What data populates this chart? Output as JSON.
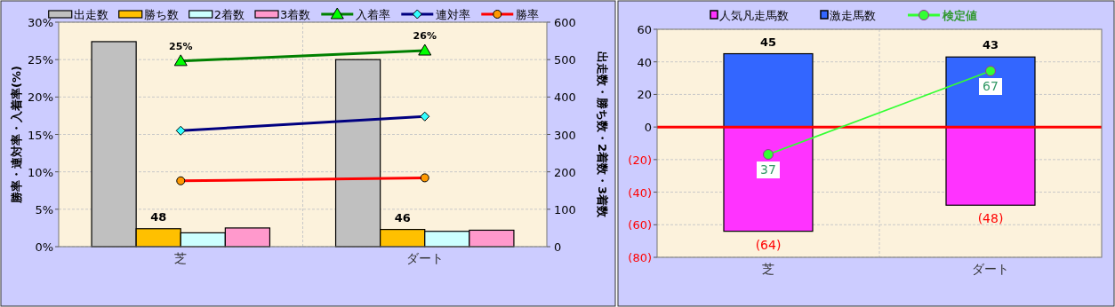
{
  "chart_data": [
    {
      "type": "bar",
      "categories": [
        "芝",
        "ダート"
      ],
      "ylabel": "勝率・連対率・入着率(%)",
      "y2label": "出走数・勝ち数・2着数・3着数",
      "ylim": [
        0,
        30
      ],
      "yticks": [
        {
          "value": 0,
          "label": "0%"
        },
        {
          "value": 5,
          "label": "5%"
        },
        {
          "value": 10,
          "label": "10%"
        },
        {
          "value": 15,
          "label": "15%"
        },
        {
          "value": 20,
          "label": "20%"
        },
        {
          "value": 25,
          "label": "25%"
        },
        {
          "value": 30,
          "label": "30%"
        }
      ],
      "y2lim": [
        0,
        600
      ],
      "y2ticks": [
        0,
        100,
        200,
        300,
        400,
        500,
        600
      ],
      "grid": true,
      "legend": "top",
      "series": [
        {
          "name": "出走数",
          "type": "bar",
          "axis": "y2",
          "color": "#c0c0c0",
          "values": [
            548,
            500
          ]
        },
        {
          "name": "勝ち数",
          "type": "bar",
          "axis": "y2",
          "color": "#ffc000",
          "values": [
            48,
            46
          ],
          "value_labels": [
            "48",
            "46"
          ]
        },
        {
          "name": "2着数",
          "type": "bar",
          "axis": "y2",
          "color": "#ccffff",
          "values": [
            37,
            41
          ]
        },
        {
          "name": "3着数",
          "type": "bar",
          "axis": "y2",
          "color": "#ff99cc",
          "values": [
            50,
            44
          ]
        },
        {
          "name": "入着率",
          "type": "line",
          "color": "#008000",
          "marker": "triangle",
          "values": [
            24.8,
            26.2
          ],
          "value_labels": [
            "25%",
            "26%"
          ]
        },
        {
          "name": "連対率",
          "type": "line",
          "color": "#000080",
          "marker": "diamond",
          "values": [
            15.5,
            17.4
          ]
        },
        {
          "name": "勝率",
          "type": "line",
          "color": "#ff0000",
          "marker": "circle",
          "values": [
            8.8,
            9.2
          ]
        }
      ]
    },
    {
      "type": "bar",
      "stacked": true,
      "categories": [
        "芝",
        "ダート"
      ],
      "ylim": [
        -80,
        60
      ],
      "yticks": [
        {
          "value": -80,
          "label": "(80)"
        },
        {
          "value": -60,
          "label": "(60)"
        },
        {
          "value": -40,
          "label": "(40)"
        },
        {
          "value": -20,
          "label": "(20)"
        },
        0,
        20,
        40,
        60
      ],
      "y2lim": [
        0,
        82
      ],
      "grid": true,
      "legend": "top",
      "ref_lines": [
        {
          "axis": "y",
          "value": 0,
          "color": "#ff0000"
        }
      ],
      "series": [
        {
          "name": "人気凡走馬数",
          "type": "bar",
          "color": "#ff33ff",
          "values": [
            -64,
            -48
          ],
          "value_labels": [
            "(64)",
            "(48)"
          ]
        },
        {
          "name": "激走馬数",
          "type": "bar",
          "color": "#3366ff",
          "values": [
            45,
            43
          ],
          "value_labels": [
            "45",
            "43"
          ]
        },
        {
          "name": "検定値",
          "type": "line",
          "axis": "y2",
          "color": "#33ff33",
          "marker": "circle",
          "values": [
            37,
            67
          ],
          "value_labels": [
            "37",
            "67"
          ]
        }
      ]
    }
  ]
}
